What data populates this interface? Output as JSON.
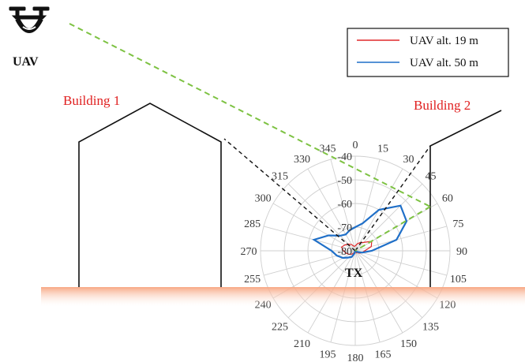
{
  "labels": {
    "uav": "UAV",
    "building1": "Building 1",
    "building2": "Building 2",
    "tx": "TX"
  },
  "legend": [
    {
      "label": "UAV alt. 19 m",
      "color": "#e0282a"
    },
    {
      "label": "UAV alt. 50 m",
      "color": "#1f6fc8"
    }
  ],
  "colors": {
    "ground": "#f7b08c",
    "los_path": "#7dc242",
    "building_edge_ray": "#111111",
    "grid": "#cfcfcf"
  },
  "chart_data": {
    "type": "polar",
    "angle_unit": "degrees",
    "angle_ticks": [
      0,
      15,
      30,
      45,
      60,
      75,
      90,
      105,
      120,
      135,
      150,
      165,
      180,
      195,
      210,
      225,
      240,
      255,
      270,
      285,
      300,
      315,
      330,
      345
    ],
    "radial_ticks": [
      -80,
      -70,
      -60,
      -50,
      -40
    ],
    "rlim": [
      -80,
      -40
    ],
    "grid": true,
    "series": [
      {
        "name": "UAV alt. 19 m",
        "angles": [
          0,
          15,
          30,
          45,
          60,
          75,
          90,
          105,
          120,
          135,
          150,
          165,
          180,
          195,
          210,
          225,
          240,
          255,
          270,
          285,
          300,
          315,
          330,
          345
        ],
        "values": [
          -78,
          -77,
          -76,
          -75,
          -72,
          -73,
          -76,
          -77,
          -78,
          -79,
          -79,
          -80,
          -80,
          -80,
          -79,
          -78,
          -77,
          -76,
          -75,
          -74,
          -75,
          -76,
          -77,
          -78
        ]
      },
      {
        "name": "UAV alt. 50 m",
        "angles": [
          0,
          15,
          30,
          45,
          60,
          75,
          90,
          105,
          120,
          135,
          150,
          165,
          180,
          195,
          210,
          225,
          240,
          255,
          270,
          285,
          300,
          315,
          330,
          345
        ],
        "values": [
          -70,
          -68,
          -60,
          -53,
          -55,
          -62,
          -73,
          -77,
          -79,
          -80,
          -80,
          -80,
          -80,
          -79,
          -77,
          -76,
          -74,
          -72,
          -70,
          -62,
          -67,
          -71,
          -72,
          -71
        ]
      }
    ]
  }
}
